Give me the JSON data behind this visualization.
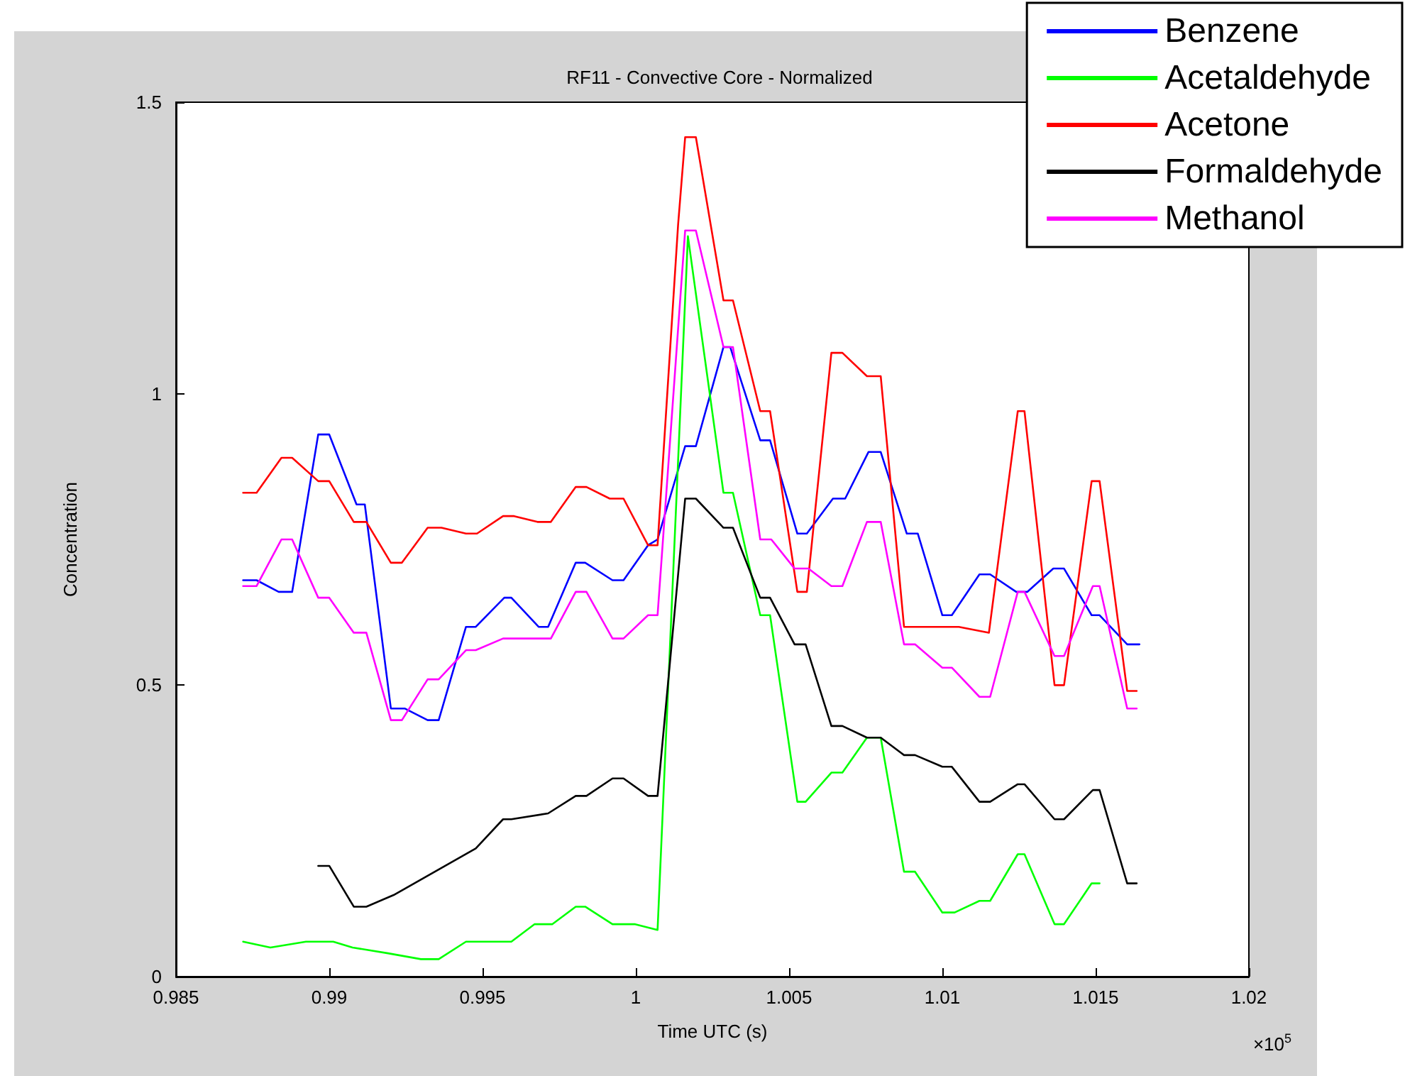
{
  "chart_data": {
    "type": "line",
    "title": "RF11 - Convective Core - Normalized",
    "xlabel": "Time UTC (s)",
    "ylabel": "Concentration",
    "annotations": [
      "×10$^{5}$"
    ],
    "xlim": [
      0.985,
      1.02
    ],
    "xticks": [
      0.985,
      0.99,
      0.995,
      1,
      1.005,
      1.01,
      1.015,
      1.02
    ],
    "ylim": [
      0,
      1.5
    ],
    "yticks": [
      0,
      0.5,
      1,
      1.5
    ],
    "grid": false,
    "legend": "top right",
    "line_style": "solid",
    "series": [
      {
        "name": "Benzene",
        "color": "#0000ff",
        "x": [
          0.98719,
          0.98763,
          0.98835,
          0.98879,
          0.98964,
          0.99,
          0.99089,
          0.99116,
          0.99201,
          0.99246,
          0.99321,
          0.99357,
          0.99446,
          0.99478,
          0.99571,
          0.99594,
          0.99683,
          0.99714,
          0.99804,
          0.99835,
          0.99924,
          0.9996,
          1.0004,
          1.00071,
          1.00161,
          1.00196,
          1.00286,
          1.00308,
          1.00406,
          1.00438,
          1.00527,
          1.00558,
          1.00643,
          1.00683,
          1.00759,
          1.00799,
          1.00884,
          1.0092,
          1.01,
          1.01031,
          1.01121,
          1.01156,
          1.01241,
          1.01277,
          1.01362,
          1.01397,
          1.01487,
          1.01513,
          1.01603,
          1.01643
        ],
        "values": [
          0.68,
          0.68,
          0.66,
          0.66,
          0.93,
          0.93,
          0.81,
          0.81,
          0.46,
          0.46,
          0.44,
          0.44,
          0.6,
          0.6,
          0.65,
          0.65,
          0.6,
          0.6,
          0.71,
          0.71,
          0.68,
          0.68,
          0.74,
          0.75,
          0.91,
          0.91,
          1.08,
          1.08,
          0.92,
          0.92,
          0.76,
          0.76,
          0.82,
          0.82,
          0.9,
          0.9,
          0.76,
          0.76,
          0.62,
          0.62,
          0.69,
          0.69,
          0.66,
          0.66,
          0.7,
          0.7,
          0.62,
          0.62,
          0.57,
          0.57
        ]
      },
      {
        "name": "Acetaldehyde",
        "color": "#00ff00",
        "x": [
          0.98719,
          0.98808,
          0.98924,
          0.99013,
          0.99076,
          0.99192,
          0.99299,
          0.99357,
          0.99446,
          0.99522,
          0.99594,
          0.9967,
          0.99728,
          0.99804,
          0.99835,
          0.99924,
          0.99996,
          1.00071,
          1.0017,
          1.00286,
          1.00317,
          1.00406,
          1.00438,
          1.00527,
          1.00554,
          1.00638,
          1.00674,
          1.00754,
          1.00799,
          1.00875,
          1.00911,
          1.01,
          1.0104,
          1.01121,
          1.01156,
          1.01246,
          1.01268,
          1.01366,
          1.01397,
          1.01487,
          1.01513
        ],
        "values": [
          0.06,
          0.05,
          0.06,
          0.06,
          0.05,
          0.04,
          0.03,
          0.03,
          0.06,
          0.06,
          0.06,
          0.09,
          0.09,
          0.12,
          0.12,
          0.09,
          0.09,
          0.08,
          1.27,
          0.83,
          0.83,
          0.62,
          0.62,
          0.3,
          0.3,
          0.35,
          0.35,
          0.41,
          0.41,
          0.18,
          0.18,
          0.11,
          0.11,
          0.13,
          0.13,
          0.21,
          0.21,
          0.09,
          0.09,
          0.16,
          0.16
        ]
      },
      {
        "name": "Acetone",
        "color": "#ff0000",
        "x": [
          0.98719,
          0.98763,
          0.98844,
          0.98879,
          0.98964,
          0.99,
          0.9908,
          0.99121,
          0.99201,
          0.99237,
          0.99321,
          0.99366,
          0.99446,
          0.99482,
          0.99567,
          0.99603,
          0.99679,
          0.99723,
          0.99804,
          0.99839,
          0.99915,
          0.9996,
          1.0004,
          1.00071,
          1.00138,
          1.00161,
          1.00196,
          1.00286,
          1.00317,
          1.00406,
          1.00438,
          1.00527,
          1.00558,
          1.00638,
          1.00674,
          1.00754,
          1.00799,
          1.00875,
          1.01054,
          1.01152,
          1.01246,
          1.01268,
          1.01366,
          1.01397,
          1.01487,
          1.01513,
          1.01603,
          1.01634
        ],
        "values": [
          0.83,
          0.83,
          0.89,
          0.89,
          0.85,
          0.85,
          0.78,
          0.78,
          0.71,
          0.71,
          0.77,
          0.77,
          0.76,
          0.76,
          0.79,
          0.79,
          0.78,
          0.78,
          0.84,
          0.84,
          0.82,
          0.82,
          0.74,
          0.74,
          1.29,
          1.44,
          1.44,
          1.16,
          1.16,
          0.97,
          0.97,
          0.66,
          0.66,
          1.07,
          1.07,
          1.03,
          1.03,
          0.6,
          0.6,
          0.59,
          0.97,
          0.97,
          0.5,
          0.5,
          0.85,
          0.85,
          0.49,
          0.49
        ]
      },
      {
        "name": "Formaldehyde",
        "color": "#000000",
        "x": [
          0.98964,
          0.99,
          0.9908,
          0.99121,
          0.9921,
          0.99478,
          0.99567,
          0.99594,
          0.99714,
          0.99804,
          0.99839,
          0.99924,
          0.9996,
          1.0004,
          1.00071,
          1.00161,
          1.00196,
          1.00286,
          1.00317,
          1.00406,
          1.00438,
          1.00518,
          1.00554,
          1.00638,
          1.00674,
          1.00754,
          1.00799,
          1.00875,
          1.00911,
          1.01,
          1.01031,
          1.01121,
          1.01156,
          1.01246,
          1.01268,
          1.01366,
          1.01397,
          1.01491,
          1.01513,
          1.01603,
          1.01634
        ],
        "values": [
          0.19,
          0.19,
          0.12,
          0.12,
          0.14,
          0.22,
          0.27,
          0.27,
          0.28,
          0.31,
          0.31,
          0.34,
          0.34,
          0.31,
          0.31,
          0.82,
          0.82,
          0.77,
          0.77,
          0.65,
          0.65,
          0.57,
          0.57,
          0.43,
          0.43,
          0.41,
          0.41,
          0.38,
          0.38,
          0.36,
          0.36,
          0.3,
          0.3,
          0.33,
          0.33,
          0.27,
          0.27,
          0.32,
          0.32,
          0.16,
          0.16
        ]
      },
      {
        "name": "Methanol",
        "color": "#ff00ff",
        "x": [
          0.98719,
          0.98763,
          0.98844,
          0.98879,
          0.98964,
          0.99,
          0.9908,
          0.99121,
          0.99201,
          0.99237,
          0.99321,
          0.99357,
          0.99446,
          0.99478,
          0.99567,
          0.99723,
          0.99804,
          0.99839,
          0.99924,
          0.9996,
          1.0004,
          1.00071,
          1.00161,
          1.00196,
          1.00286,
          1.00317,
          1.00406,
          1.00442,
          1.00518,
          1.00563,
          1.00638,
          1.00674,
          1.00754,
          1.00799,
          1.00875,
          1.00911,
          1.01,
          1.01031,
          1.01121,
          1.01156,
          1.01246,
          1.01268,
          1.01366,
          1.01397,
          1.01491,
          1.01513,
          1.01603,
          1.01634
        ],
        "values": [
          0.67,
          0.67,
          0.75,
          0.75,
          0.65,
          0.65,
          0.59,
          0.59,
          0.44,
          0.44,
          0.51,
          0.51,
          0.56,
          0.56,
          0.58,
          0.58,
          0.66,
          0.66,
          0.58,
          0.58,
          0.62,
          0.62,
          1.28,
          1.28,
          1.08,
          1.08,
          0.75,
          0.75,
          0.7,
          0.7,
          0.67,
          0.67,
          0.78,
          0.78,
          0.57,
          0.57,
          0.53,
          0.53,
          0.48,
          0.48,
          0.66,
          0.66,
          0.55,
          0.55,
          0.67,
          0.67,
          0.46,
          0.46
        ]
      }
    ]
  }
}
